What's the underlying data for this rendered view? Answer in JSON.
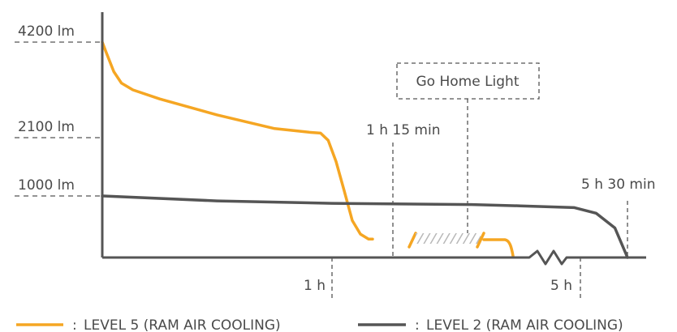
{
  "chart_data": {
    "type": "line",
    "title": "",
    "xlabel": "",
    "ylabel": "",
    "y_ticks": [
      {
        "label": "4200 lm",
        "value": 4200
      },
      {
        "label": "2100 lm",
        "value": 2100
      },
      {
        "label": "1000 lm",
        "value": 1000
      }
    ],
    "x_ticks": [
      {
        "label": "1 h",
        "value": 60
      },
      {
        "label": "5 h",
        "value": 300
      }
    ],
    "annotations": [
      {
        "label": "1 h 15 min",
        "value": 75
      },
      {
        "label": "5 h 30 min",
        "value": 330
      },
      {
        "label": "Go Home Light"
      }
    ],
    "series": [
      {
        "name": "LEVEL 5 (RAM AIR COOLING)",
        "color": "#f5a623",
        "points": [
          [
            0,
            4200
          ],
          [
            1,
            3980
          ],
          [
            3,
            3550
          ],
          [
            5,
            3300
          ],
          [
            8,
            3150
          ],
          [
            15,
            2950
          ],
          [
            30,
            2600
          ],
          [
            45,
            2300
          ],
          [
            54,
            2220
          ],
          [
            57,
            2200
          ],
          [
            59,
            2050
          ],
          [
            61,
            1650
          ],
          [
            63,
            1100
          ],
          [
            65,
            600
          ],
          [
            67,
            380
          ],
          [
            69,
            300
          ],
          [
            70,
            300
          ]
        ]
      },
      {
        "name": "LEVEL 2 (RAM AIR COOLING)",
        "color": "#555555",
        "points": [
          [
            0,
            1000
          ],
          [
            30,
            920
          ],
          [
            60,
            880
          ],
          [
            120,
            860
          ],
          [
            200,
            840
          ],
          [
            290,
            810
          ],
          [
            310,
            720
          ],
          [
            322,
            480
          ],
          [
            327,
            180
          ],
          [
            330,
            0
          ]
        ]
      }
    ],
    "legend": {
      "position": "bottom",
      "separator": ": "
    }
  }
}
